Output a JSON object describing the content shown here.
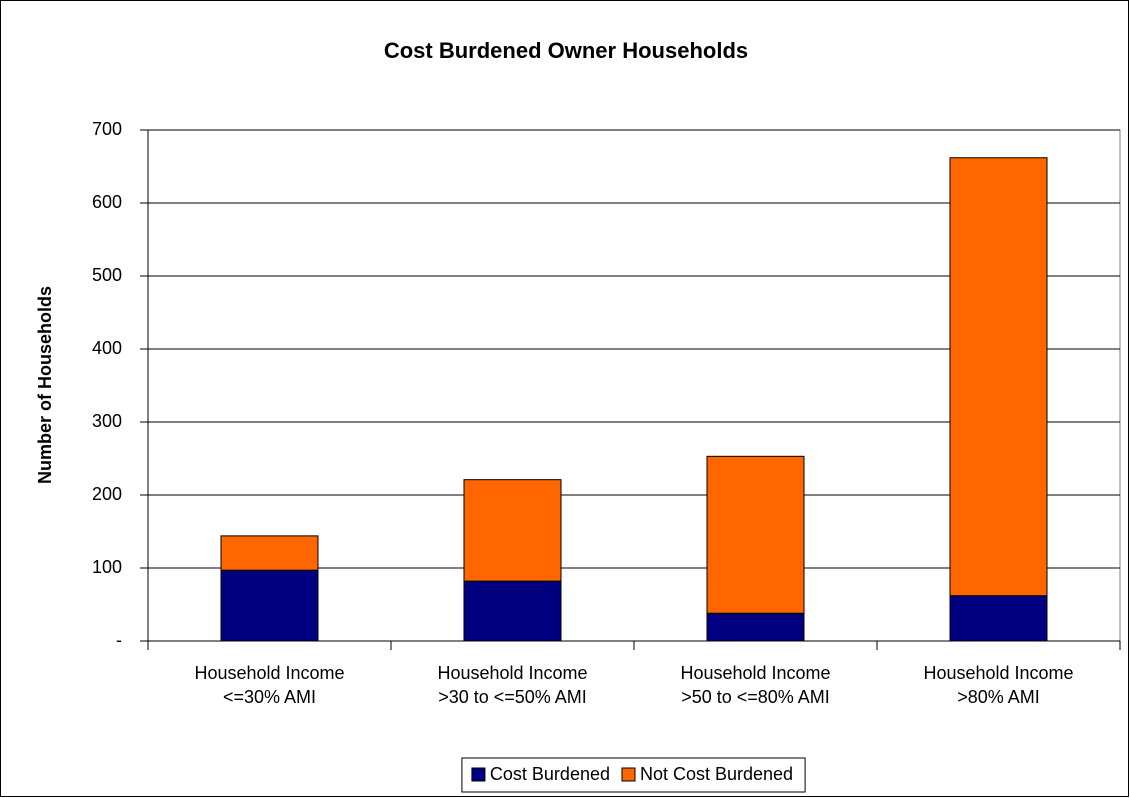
{
  "chart_data": {
    "type": "stacked_bar",
    "title": "Cost Burdened Owner Households",
    "y_label": "Number of Households",
    "categories": [
      "Household Income\n<=30% AMI",
      "Household Income\n>30 to <=50% AMI",
      "Household Income\n>50 to <=80% AMI",
      "Household Income\n>80% AMI"
    ],
    "series": [
      {
        "name": "Cost Burdened",
        "color": "#000080",
        "values": [
          97,
          82,
          38,
          62
        ]
      },
      {
        "name": "Not Cost Burdened",
        "color": "#ff6600",
        "values": [
          47,
          139,
          215,
          600
        ]
      }
    ],
    "ylim": [
      0,
      700
    ],
    "yticks": [
      {
        "value": 0,
        "label": "-"
      },
      100,
      200,
      300,
      400,
      500,
      600,
      700
    ],
    "grid": true,
    "legend": "bottom"
  }
}
